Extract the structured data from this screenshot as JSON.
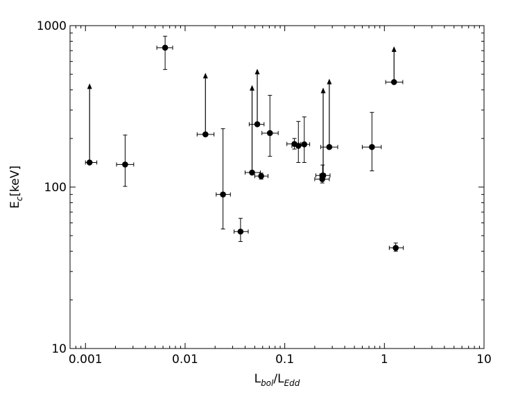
{
  "chart_data": {
    "type": "scatter",
    "xscale": "log",
    "yscale": "log",
    "xlim": [
      0.0007,
      10
    ],
    "ylim": [
      10,
      1000
    ],
    "grid": false,
    "xlabel": {
      "main": "L",
      "sub": "bol",
      "sep": "/",
      "main2": "L",
      "sub2": "Edd"
    },
    "ylabel": {
      "main": "E",
      "sub": "c",
      "rest": "[keV]"
    },
    "xticks": [
      {
        "value": 0.001,
        "label": "0.001"
      },
      {
        "value": 0.01,
        "label": "0.01"
      },
      {
        "value": 0.1,
        "label": "0.1"
      },
      {
        "value": 1,
        "label": "1"
      },
      {
        "value": 10,
        "label": "10"
      }
    ],
    "yticks": [
      {
        "value": 10,
        "label": "10"
      },
      {
        "value": 100,
        "label": "100"
      },
      {
        "value": 1000,
        "label": "1000"
      }
    ],
    "points": [
      {
        "x": 0.0011,
        "xerr": [
          0.001,
          0.0013
        ],
        "y": 142,
        "yerr": [
          142,
          430
        ],
        "lower_limit": true
      },
      {
        "x": 0.0025,
        "xerr": [
          0.00205,
          0.00305
        ],
        "y": 138,
        "yerr": [
          101,
          210
        ],
        "lower_limit": false
      },
      {
        "x": 0.0063,
        "xerr": [
          0.0052,
          0.0075
        ],
        "y": 730,
        "yerr": [
          535,
          860
        ],
        "lower_limit": false
      },
      {
        "x": 0.016,
        "xerr": [
          0.0132,
          0.0195
        ],
        "y": 212,
        "yerr": [
          212,
          500
        ],
        "lower_limit": true
      },
      {
        "x": 0.024,
        "xerr": [
          0.0205,
          0.0285
        ],
        "y": 90,
        "yerr": [
          55,
          230
        ],
        "lower_limit": false
      },
      {
        "x": 0.036,
        "xerr": [
          0.031,
          0.043
        ],
        "y": 53,
        "yerr": [
          46,
          64
        ],
        "lower_limit": false
      },
      {
        "x": 0.047,
        "xerr": [
          0.04,
          0.057
        ],
        "y": 123,
        "yerr": [
          123,
          420
        ],
        "lower_limit": true
      },
      {
        "x": 0.053,
        "xerr": [
          0.044,
          0.062
        ],
        "y": 245,
        "yerr": [
          245,
          530
        ],
        "lower_limit": true
      },
      {
        "x": 0.058,
        "xerr": [
          0.05,
          0.068
        ],
        "y": 117,
        "yerr": [
          112,
          122
        ],
        "lower_limit": false
      },
      {
        "x": 0.071,
        "xerr": [
          0.059,
          0.086
        ],
        "y": 216,
        "yerr": [
          155,
          370
        ],
        "lower_limit": false
      },
      {
        "x": 0.125,
        "xerr": [
          0.105,
          0.145
        ],
        "y": 185,
        "yerr": [
          172,
          200
        ],
        "lower_limit": false
      },
      {
        "x": 0.137,
        "xerr": [
          0.118,
          0.157
        ],
        "y": 180,
        "yerr": [
          142,
          255
        ],
        "lower_limit": false
      },
      {
        "x": 0.157,
        "xerr": [
          0.138,
          0.178
        ],
        "y": 184,
        "yerr": [
          142,
          272
        ],
        "lower_limit": false
      },
      {
        "x": 0.238,
        "xerr": [
          0.2,
          0.28
        ],
        "y": 112,
        "yerr": [
          106,
          117
        ],
        "lower_limit": false
      },
      {
        "x": 0.243,
        "xerr": [
          0.205,
          0.285
        ],
        "y": 118,
        "yerr": [
          118,
          405
        ],
        "lower_limit": true
      },
      {
        "x": 0.24,
        "xerr": [
          0.225,
          0.256
        ],
        "y": 118,
        "yerr": [
          110,
          137
        ],
        "lower_limit": false
      },
      {
        "x": 0.28,
        "xerr": [
          0.23,
          0.34
        ],
        "y": 177,
        "yerr": [
          177,
          460
        ],
        "lower_limit": true
      },
      {
        "x": 0.75,
        "xerr": [
          0.6,
          0.93
        ],
        "y": 177,
        "yerr": [
          126,
          290
        ],
        "lower_limit": false
      },
      {
        "x": 1.25,
        "xerr": [
          1.03,
          1.53
        ],
        "y": 447,
        "yerr": [
          447,
          730
        ],
        "lower_limit": true
      },
      {
        "x": 1.3,
        "xerr": [
          1.12,
          1.55
        ],
        "y": 42,
        "yerr": [
          40,
          45
        ],
        "lower_limit": false
      }
    ]
  }
}
